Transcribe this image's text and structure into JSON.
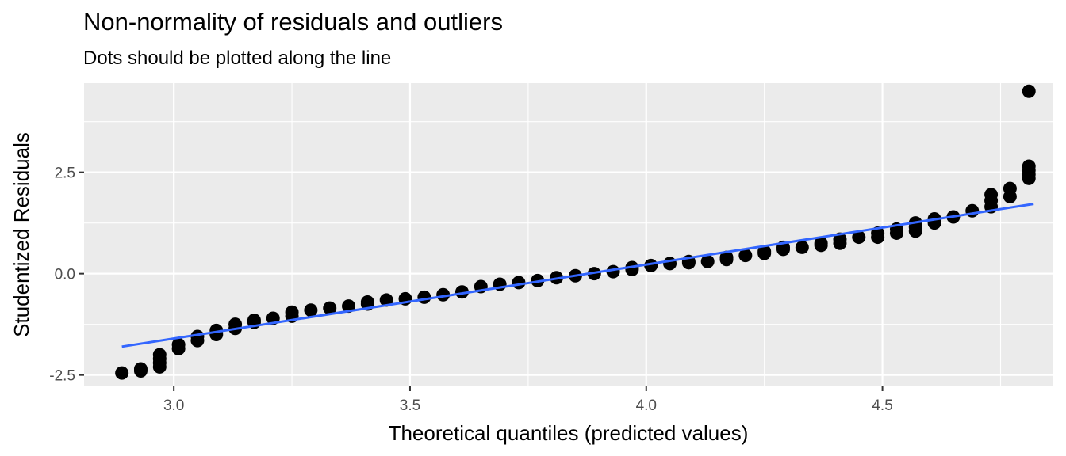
{
  "chart_data": {
    "type": "scatter",
    "title": "Non-normality of residuals and outliers",
    "subtitle": "Dots should be plotted along the line",
    "xlabel": "Theoretical quantiles (predicted values)",
    "ylabel": "Studentized Residuals",
    "xlim": [
      2.81,
      4.86
    ],
    "ylim": [
      -2.78,
      4.7
    ],
    "x_ticks": [
      3.0,
      3.5,
      4.0,
      4.5
    ],
    "x_tick_labels": [
      "3.0",
      "3.5",
      "4.0",
      "4.5"
    ],
    "y_ticks": [
      -2.5,
      0.0,
      2.5
    ],
    "y_tick_labels": [
      "-2.5",
      "0.0",
      "2.5"
    ],
    "grid": true,
    "background": "#ebebeb",
    "point_color": "#000000",
    "line_color": "#3366ff",
    "reference_line": {
      "x": [
        2.89,
        4.82
      ],
      "y": [
        -1.8,
        1.72
      ]
    },
    "points": [
      [
        2.89,
        -2.45
      ],
      [
        2.93,
        -2.4
      ],
      [
        2.93,
        -2.35
      ],
      [
        2.97,
        -2.3
      ],
      [
        2.97,
        -2.2
      ],
      [
        2.97,
        -2.1
      ],
      [
        2.97,
        -2.0
      ],
      [
        3.01,
        -1.85
      ],
      [
        3.01,
        -1.75
      ],
      [
        3.05,
        -1.65
      ],
      [
        3.05,
        -1.55
      ],
      [
        3.09,
        -1.5
      ],
      [
        3.09,
        -1.4
      ],
      [
        3.13,
        -1.35
      ],
      [
        3.13,
        -1.25
      ],
      [
        3.17,
        -1.2
      ],
      [
        3.17,
        -1.15
      ],
      [
        3.21,
        -1.1
      ],
      [
        3.25,
        -1.05
      ],
      [
        3.25,
        -0.95
      ],
      [
        3.29,
        -0.9
      ],
      [
        3.33,
        -0.85
      ],
      [
        3.37,
        -0.8
      ],
      [
        3.41,
        -0.75
      ],
      [
        3.41,
        -0.7
      ],
      [
        3.45,
        -0.65
      ],
      [
        3.49,
        -0.62
      ],
      [
        3.53,
        -0.58
      ],
      [
        3.57,
        -0.52
      ],
      [
        3.61,
        -0.45
      ],
      [
        3.65,
        -0.32
      ],
      [
        3.69,
        -0.26
      ],
      [
        3.73,
        -0.22
      ],
      [
        3.77,
        -0.17
      ],
      [
        3.81,
        -0.1
      ],
      [
        3.85,
        -0.05
      ],
      [
        3.89,
        0.0
      ],
      [
        3.93,
        0.05
      ],
      [
        3.97,
        0.1
      ],
      [
        3.97,
        0.15
      ],
      [
        4.01,
        0.2
      ],
      [
        4.05,
        0.25
      ],
      [
        4.09,
        0.27
      ],
      [
        4.09,
        0.3
      ],
      [
        4.13,
        0.3
      ],
      [
        4.17,
        0.35
      ],
      [
        4.17,
        0.4
      ],
      [
        4.21,
        0.45
      ],
      [
        4.25,
        0.5
      ],
      [
        4.25,
        0.55
      ],
      [
        4.29,
        0.6
      ],
      [
        4.29,
        0.65
      ],
      [
        4.33,
        0.65
      ],
      [
        4.37,
        0.7
      ],
      [
        4.37,
        0.75
      ],
      [
        4.41,
        0.75
      ],
      [
        4.41,
        0.85
      ],
      [
        4.45,
        0.9
      ],
      [
        4.49,
        0.9
      ],
      [
        4.49,
        1.0
      ],
      [
        4.53,
        1.0
      ],
      [
        4.53,
        1.1
      ],
      [
        4.57,
        1.05
      ],
      [
        4.57,
        1.15
      ],
      [
        4.57,
        1.25
      ],
      [
        4.61,
        1.25
      ],
      [
        4.61,
        1.35
      ],
      [
        4.65,
        1.4
      ],
      [
        4.69,
        1.55
      ],
      [
        4.73,
        1.65
      ],
      [
        4.73,
        1.8
      ],
      [
        4.73,
        1.95
      ],
      [
        4.77,
        1.9
      ],
      [
        4.77,
        2.1
      ],
      [
        4.81,
        2.35
      ],
      [
        4.81,
        2.45
      ],
      [
        4.81,
        2.55
      ],
      [
        4.81,
        2.65
      ],
      [
        4.81,
        4.5
      ]
    ]
  }
}
